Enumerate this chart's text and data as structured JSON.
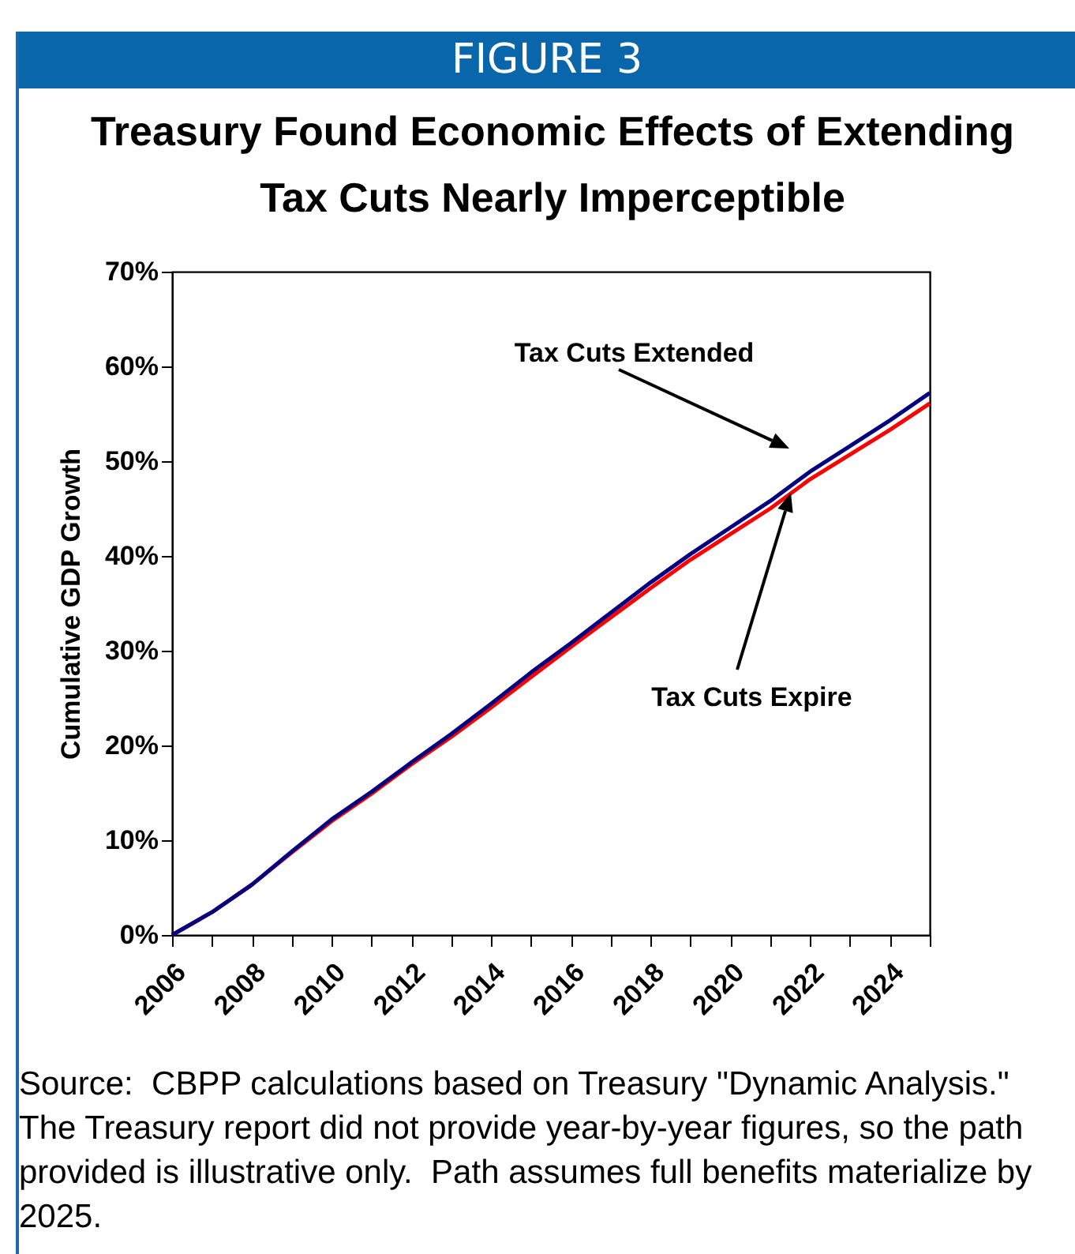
{
  "chart_data": {
    "type": "line",
    "title": "Treasury Found Economic Effects of Extending Tax Cuts Nearly Imperceptible",
    "ylabel": "Cumulative GDP Growth",
    "annotations": [
      "FIGURE 3",
      "Source:  CBPP calculations based on Treasury \"Dynamic Analysis.\"  The Treasury report did not provide year-by-year figures, so the path provided is illustrative only.  Path assumes full benefits materialize by 2025."
    ],
    "x": [
      2006,
      2007,
      2008,
      2009,
      2010,
      2011,
      2012,
      2013,
      2014,
      2015,
      2016,
      2017,
      2018,
      2019,
      2020,
      2021,
      2022,
      2023,
      2024,
      2025
    ],
    "series": [
      {
        "name": "Tax Cuts Expire",
        "color": "#ff0000",
        "values": [
          0,
          2.4,
          5.3,
          8.7,
          12.0,
          14.9,
          18.0,
          20.9,
          24.0,
          27.2,
          30.4,
          33.5,
          36.6,
          39.6,
          42.3,
          45.0,
          48.1,
          50.7,
          53.3,
          56.1
        ]
      },
      {
        "name": "Tax Cuts Extended",
        "color": "#000080",
        "values": [
          0,
          2.4,
          5.3,
          8.8,
          12.2,
          15.1,
          18.2,
          21.2,
          24.4,
          27.7,
          30.8,
          34.0,
          37.2,
          40.2,
          43.0,
          45.8,
          48.9,
          51.6,
          54.3,
          57.2
        ]
      }
    ],
    "xlim": [
      2006,
      2025
    ],
    "xticks": [
      2006,
      {
        "value": 2007,
        "label": null
      },
      2008,
      {
        "value": 2009,
        "label": null
      },
      2010,
      {
        "value": 2011,
        "label": null
      },
      2012,
      {
        "value": 2013,
        "label": null
      },
      2014,
      {
        "value": 2015,
        "label": null
      },
      2016,
      {
        "value": 2017,
        "label": null
      },
      2018,
      {
        "value": 2019,
        "label": null
      },
      2020,
      {
        "value": 2021,
        "label": null
      },
      2022,
      {
        "value": 2023,
        "label": null
      },
      2024,
      {
        "value": 2025,
        "label": null
      }
    ],
    "ylim": [
      0,
      70
    ],
    "yticks": [
      {
        "value": 0,
        "label": "0%"
      },
      {
        "value": 10,
        "label": "10%"
      },
      {
        "value": 20,
        "label": "20%"
      },
      {
        "value": 30,
        "label": "30%"
      },
      {
        "value": 40,
        "label": "40%"
      },
      {
        "value": 50,
        "label": "50%"
      },
      {
        "value": 60,
        "label": "60%"
      },
      {
        "value": 70,
        "label": "70%"
      }
    ],
    "grid": false,
    "legend": false,
    "marker": "none",
    "line_style": "solid"
  }
}
